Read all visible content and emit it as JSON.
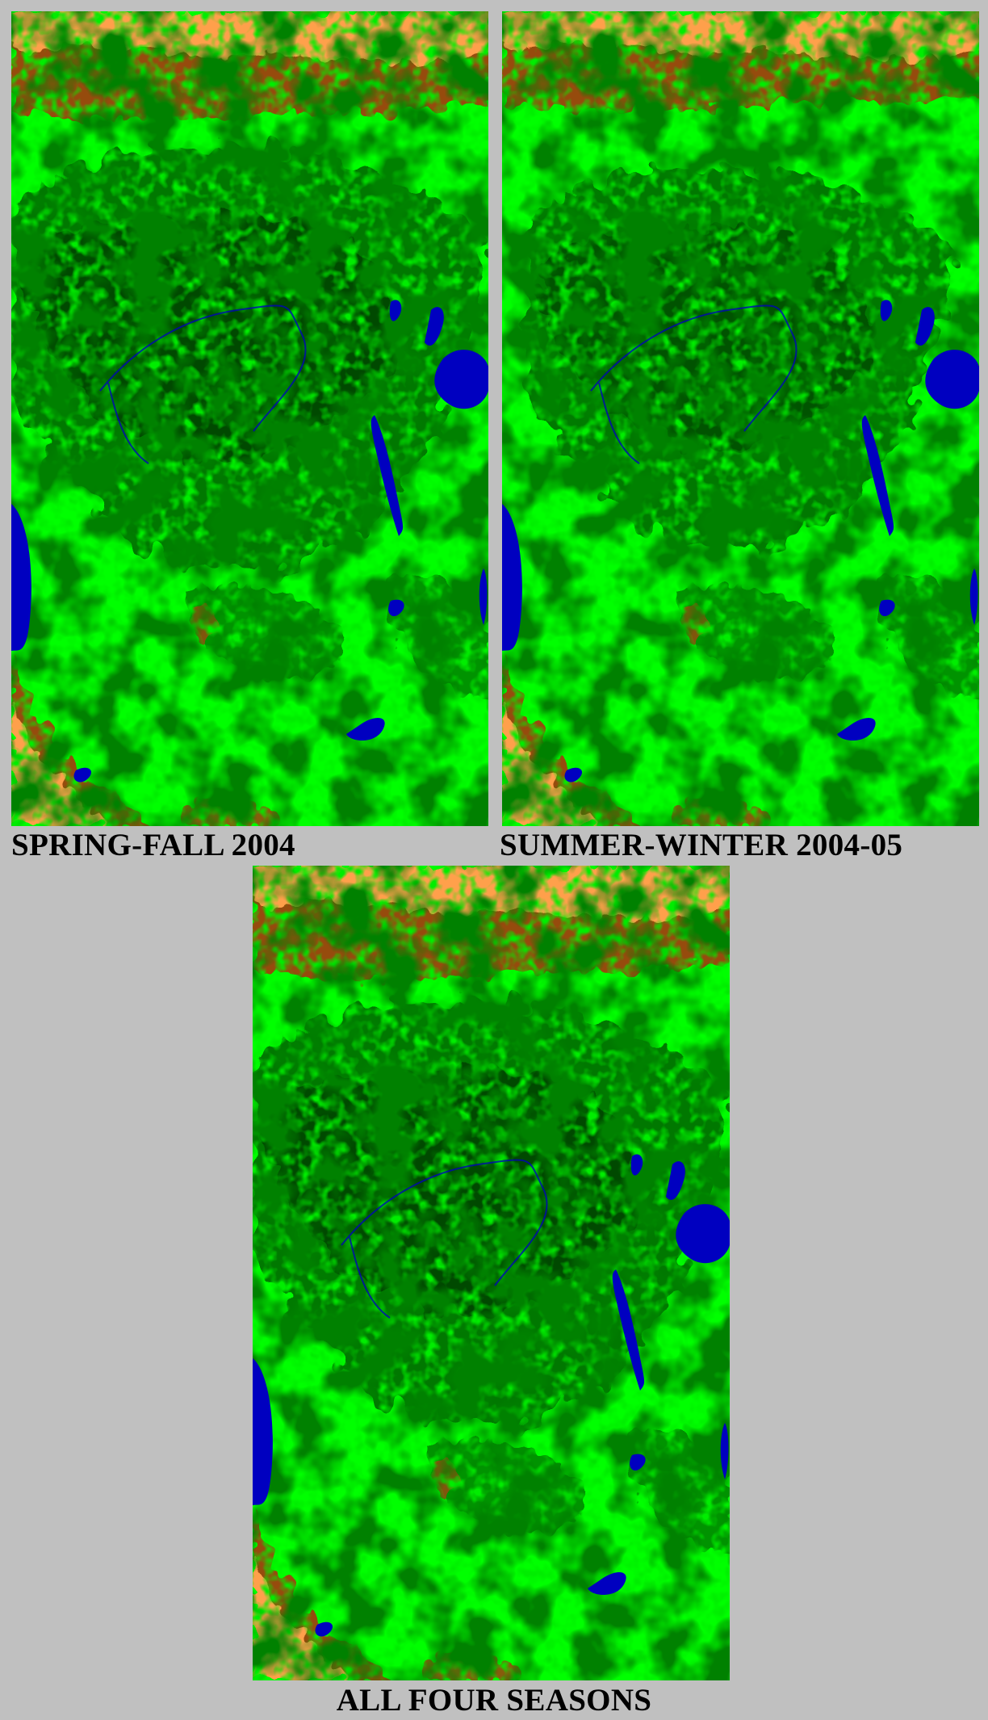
{
  "panels": [
    {
      "id": "spring-fall",
      "caption": "SPRING-FALL 2004"
    },
    {
      "id": "summer-winter",
      "caption": "SUMMER-WINTER 2004-05"
    },
    {
      "id": "all-four",
      "caption": "ALL FOUR SEASONS"
    }
  ],
  "colors": {
    "background": "#c0c0c0",
    "desert": "#ffa04c",
    "savanna": "#964b0a",
    "woodland": "#00ff00",
    "forest": "#007800",
    "dense_forest": "#004800",
    "water": "#0000c0"
  }
}
